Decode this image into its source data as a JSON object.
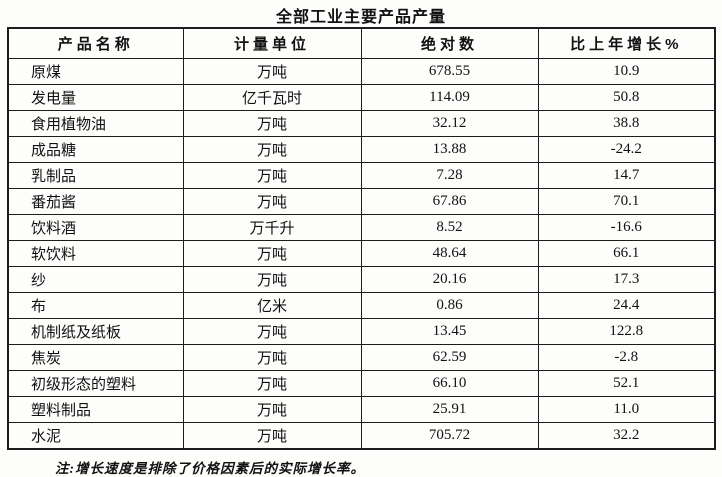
{
  "title": "全部工业主要产品产量",
  "table": {
    "headers": [
      "产品名称",
      "计量单位",
      "绝对数",
      "比上年增长%"
    ],
    "rows": [
      [
        "原煤",
        "万吨",
        "678.55",
        "10.9"
      ],
      [
        "发电量",
        "亿千瓦时",
        "114.09",
        "50.8"
      ],
      [
        "食用植物油",
        "万吨",
        "32.12",
        "38.8"
      ],
      [
        "成品糖",
        "万吨",
        "13.88",
        "-24.2"
      ],
      [
        "乳制品",
        "万吨",
        "7.28",
        "14.7"
      ],
      [
        "番茄酱",
        "万吨",
        "67.86",
        "70.1"
      ],
      [
        "饮料酒",
        "万千升",
        "8.52",
        "-16.6"
      ],
      [
        "软饮料",
        "万吨",
        "48.64",
        "66.1"
      ],
      [
        "纱",
        "万吨",
        "20.16",
        "17.3"
      ],
      [
        "布",
        "亿米",
        "0.86",
        "24.4"
      ],
      [
        "机制纸及纸板",
        "万吨",
        "13.45",
        "122.8"
      ],
      [
        "焦炭",
        "万吨",
        "62.59",
        "-2.8"
      ],
      [
        "初级形态的塑料",
        "万吨",
        "66.10",
        "52.1"
      ],
      [
        "塑料制品",
        "万吨",
        "25.91",
        "11.0"
      ],
      [
        "水泥",
        "万吨",
        "705.72",
        "32.2"
      ]
    ]
  },
  "note": "注:增长速度是排除了价格因素后的实际增长率。"
}
